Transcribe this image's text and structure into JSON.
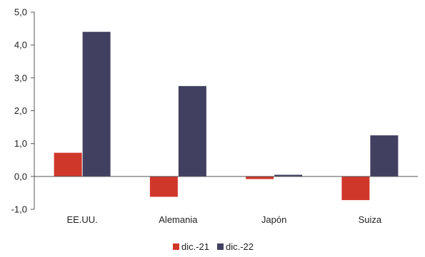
{
  "chart_data": {
    "type": "bar",
    "categories": [
      "EE.UU.",
      "Alemania",
      "Japón",
      "Suiza"
    ],
    "series": [
      {
        "name": "dic.-21",
        "values": [
          0.72,
          -0.62,
          -0.08,
          -0.72
        ],
        "color": "#d0372b"
      },
      {
        "name": "dic.-22",
        "values": [
          4.4,
          2.75,
          0.05,
          1.25
        ],
        "color": "#414061"
      }
    ],
    "ylim": [
      -1.0,
      5.0
    ],
    "yticks": [
      "5,0",
      "4,0",
      "3,0",
      "2,0",
      "1,0",
      "0,0",
      "-1,0"
    ],
    "ytick_values": [
      5,
      4,
      3,
      2,
      1,
      0,
      -1
    ],
    "grid": false,
    "legend_position": "bottom-center"
  }
}
